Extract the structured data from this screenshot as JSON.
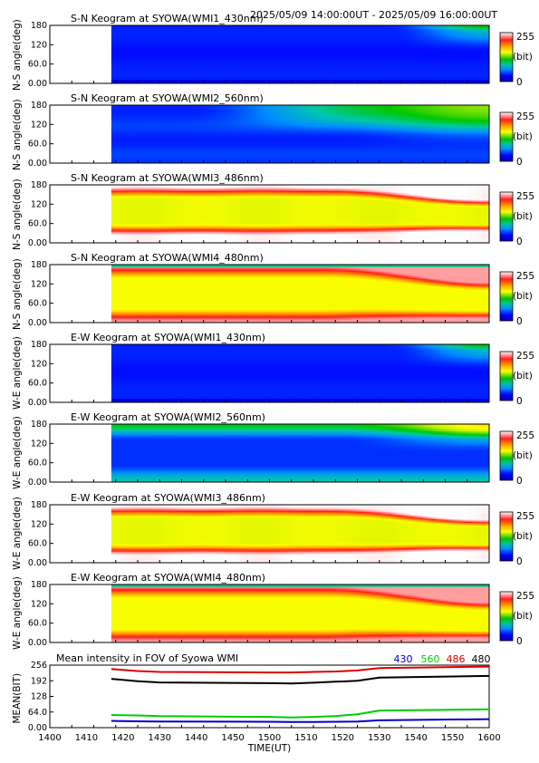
{
  "header": {
    "time_range": "2025/05/09 14:00:00UT - 2025/05/09 16:00:00UT"
  },
  "colors": {
    "colormap": [
      "#0000aa",
      "#0000ff",
      "#0080ff",
      "#00d0c0",
      "#00c000",
      "#80e000",
      "#ffff00",
      "#ffa000",
      "#ff2000",
      "#ffffff"
    ],
    "series_430": "#0000cc",
    "series_560": "#00cc00",
    "series_486": "#dd0000",
    "series_480": "#000000"
  },
  "chart_data": [
    {
      "type": "heatmap",
      "title": "S-N Keogram at SYOWA(WMI1_430nm)",
      "ylabel": "N-S angle(deg)",
      "yticks": [
        "0.00",
        "60.0",
        "120",
        "180"
      ],
      "ylim": [
        0,
        180
      ],
      "xlim": [
        1400,
        1600
      ],
      "data_start": 1428,
      "profile": "blue_flat",
      "colorbar": {
        "max": "255",
        "unit": "(bit)",
        "min": "0"
      }
    },
    {
      "type": "heatmap",
      "title": "S-N Keogram at SYOWA(WMI2_560nm)",
      "ylabel": "N-S angle(deg)",
      "yticks": [
        "0.00",
        "60.0",
        "120",
        "180"
      ],
      "ylim": [
        0,
        180
      ],
      "xlim": [
        1400,
        1600
      ],
      "data_start": 1428,
      "profile": "green_top",
      "colorbar": {
        "max": "255",
        "unit": "(bit)",
        "min": "0"
      }
    },
    {
      "type": "heatmap",
      "title": "S-N Keogram at SYOWA(WMI3_486nm)",
      "ylabel": "N-S angle(deg)",
      "yticks": [
        "0.00",
        "60.0",
        "120",
        "180"
      ],
      "ylim": [
        0,
        180
      ],
      "xlim": [
        1400,
        1600
      ],
      "data_start": 1428,
      "profile": "warm_bright",
      "colorbar": {
        "max": "255",
        "unit": "(bit)",
        "min": "0"
      }
    },
    {
      "type": "heatmap",
      "title": "S-N Keogram at SYOWA(WMI4_480nm)",
      "ylabel": "N-S angle(deg)",
      "yticks": [
        "0.00",
        "60.0",
        "120",
        "180"
      ],
      "ylim": [
        0,
        180
      ],
      "xlim": [
        1400,
        1600
      ],
      "data_start": 1428,
      "profile": "warm_dense",
      "colorbar": {
        "max": "255",
        "unit": "(bit)",
        "min": "0"
      }
    },
    {
      "type": "heatmap",
      "title": "E-W Keogram at SYOWA(WMI1_430nm)",
      "ylabel": "W-E angle(deg)",
      "yticks": [
        "0.00",
        "60.0",
        "120",
        "180"
      ],
      "ylim": [
        0,
        180
      ],
      "xlim": [
        1400,
        1600
      ],
      "data_start": 1428,
      "profile": "blue_flat",
      "colorbar": {
        "max": "255",
        "unit": "(bit)",
        "min": "0"
      }
    },
    {
      "type": "heatmap",
      "title": "E-W Keogram at SYOWA(WMI2_560nm)",
      "ylabel": "W-E angle(deg)",
      "yticks": [
        "0.00",
        "60.0",
        "120",
        "180"
      ],
      "ylim": [
        0,
        180
      ],
      "xlim": [
        1400,
        1600
      ],
      "data_start": 1428,
      "profile": "green_edges",
      "colorbar": {
        "max": "255",
        "unit": "(bit)",
        "min": "0"
      }
    },
    {
      "type": "heatmap",
      "title": "E-W Keogram at SYOWA(WMI3_486nm)",
      "ylabel": "W-E angle(deg)",
      "yticks": [
        "0.00",
        "60.0",
        "120",
        "180"
      ],
      "ylim": [
        0,
        180
      ],
      "xlim": [
        1400,
        1600
      ],
      "data_start": 1428,
      "profile": "warm_bright",
      "colorbar": {
        "max": "255",
        "unit": "(bit)",
        "min": "0"
      }
    },
    {
      "type": "heatmap",
      "title": "E-W Keogram at SYOWA(WMI4_480nm)",
      "ylabel": "W-E angle(deg)",
      "yticks": [
        "0.00",
        "60.0",
        "120",
        "180"
      ],
      "ylim": [
        0,
        180
      ],
      "xlim": [
        1400,
        1600
      ],
      "data_start": 1428,
      "profile": "warm_dense",
      "colorbar": {
        "max": "255",
        "unit": "(bit)",
        "min": "0"
      }
    },
    {
      "type": "line",
      "title": "Mean intensity in FOV of Syowa WMI",
      "ylabel": "MEAN(BIT)",
      "xlabel": "TIME(UT)",
      "yticks": [
        "0.00",
        "64.0",
        "128",
        "192",
        "256"
      ],
      "ylim": [
        0,
        256
      ],
      "xlim": [
        1400,
        1600
      ],
      "xticks": [
        "1400",
        "1410",
        "1420",
        "1430",
        "1440",
        "1450",
        "1500",
        "1510",
        "1520",
        "1530",
        "1540",
        "1550",
        "1600"
      ],
      "x": [
        1428,
        1440,
        1450,
        1500,
        1510,
        1520,
        1530,
        1540,
        1550,
        1600
      ],
      "series": [
        {
          "name": "430",
          "color": "#0000cc",
          "values": [
            28,
            26,
            25,
            24,
            23,
            23,
            24,
            25,
            30,
            35
          ]
        },
        {
          "name": "560",
          "color": "#00cc00",
          "values": [
            52,
            50,
            47,
            44,
            42,
            44,
            47,
            55,
            70,
            75
          ]
        },
        {
          "name": "486",
          "color": "#dd0000",
          "values": [
            240,
            232,
            228,
            226,
            226,
            228,
            230,
            234,
            244,
            250
          ]
        },
        {
          "name": "480",
          "color": "#000000",
          "values": [
            200,
            190,
            185,
            182,
            181,
            184,
            188,
            192,
            205,
            212
          ]
        }
      ]
    }
  ]
}
